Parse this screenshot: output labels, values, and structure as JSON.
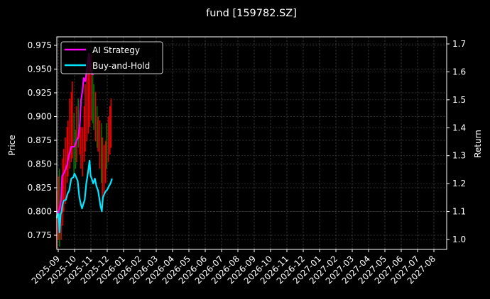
{
  "chart_data": {
    "type": "line",
    "title": "fund [159782.SZ]",
    "xlabel": "",
    "ylabel": "Price",
    "ylabel_right": "Return",
    "grid": true,
    "legend_position": "upper left",
    "x_ticks": [
      "2025-09",
      "2025-10",
      "2025-11",
      "2025-12",
      "2026-01",
      "2026-02",
      "2026-03",
      "2026-04",
      "2026-05",
      "2026-06",
      "2026-07",
      "2026-08",
      "2026-09",
      "2026-10",
      "2026-11",
      "2026-12",
      "2027-01",
      "2027-02",
      "2027-03",
      "2027-04",
      "2027-05",
      "2027-06",
      "2027-07",
      "2027-08"
    ],
    "y_ticks_left": [
      "0.775",
      "0.800",
      "0.825",
      "0.850",
      "0.875",
      "0.900",
      "0.925",
      "0.950",
      "0.975"
    ],
    "y_ticks_right": [
      "1.0",
      "1.1",
      "1.2",
      "1.3",
      "1.4",
      "1.5",
      "1.6",
      "1.7"
    ],
    "ylim_left": [
      0.761,
      0.983
    ],
    "ylim_right": [
      0.965,
      1.725
    ],
    "series": [
      {
        "name": "AI Strategy",
        "axis": "right",
        "color": "#ff00ff",
        "x_day": [
          0,
          3,
          5,
          8,
          10,
          13,
          17,
          20,
          22,
          27,
          30,
          33,
          37,
          40,
          43,
          45,
          48,
          50,
          53,
          57,
          60,
          63,
          66,
          69
        ],
        "values": [
          1.096,
          1.096,
          1.109,
          1.142,
          1.228,
          1.236,
          1.254,
          1.274,
          1.297,
          1.332,
          1.332,
          1.332,
          1.355,
          1.365,
          1.416,
          1.497,
          1.533,
          1.578,
          1.566,
          1.617,
          1.666,
          1.604,
          1.592,
          1.592
        ]
      },
      {
        "name": "Buy-and-Hold",
        "axis": "right",
        "color": "#00e5ff",
        "x_day": [
          0,
          1,
          3,
          5,
          7,
          9,
          11,
          13,
          17,
          20,
          23,
          27,
          31,
          33,
          36,
          39,
          42,
          45,
          47,
          49,
          52,
          55,
          58,
          61,
          63,
          65,
          68,
          71,
          74,
          77,
          79,
          81,
          84,
          86,
          89,
          92,
          94,
          97,
          100,
          103
        ],
        "values": [
          1.076,
          1.096,
          1.101,
          1.025,
          1.089,
          1.101,
          1.128,
          1.139,
          1.142,
          1.164,
          1.175,
          1.218,
          1.223,
          1.236,
          1.223,
          1.21,
          1.152,
          1.124,
          1.111,
          1.124,
          1.142,
          1.2,
          1.238,
          1.282,
          1.228,
          1.218,
          1.2,
          1.218,
          1.19,
          1.175,
          1.152,
          1.124,
          1.101,
          1.15,
          1.165,
          1.175,
          1.178,
          1.19,
          1.2,
          1.218
        ]
      }
    ],
    "price_bars": {
      "up_color": "#ff0000",
      "down_color": "#008000",
      "bars": [
        {
          "d": 0,
          "lo": 0.761,
          "hi": 0.822,
          "c": "up"
        },
        {
          "d": 3,
          "lo": 0.77,
          "hi": 0.837,
          "c": "up"
        },
        {
          "d": 5,
          "lo": 0.763,
          "hi": 0.845,
          "c": "down"
        },
        {
          "d": 8,
          "lo": 0.77,
          "hi": 0.815,
          "c": "up"
        },
        {
          "d": 11,
          "lo": 0.785,
          "hi": 0.856,
          "c": "up"
        },
        {
          "d": 13,
          "lo": 0.8,
          "hi": 0.866,
          "c": "up"
        },
        {
          "d": 16,
          "lo": 0.808,
          "hi": 0.878,
          "c": "up"
        },
        {
          "d": 19,
          "lo": 0.83,
          "hi": 0.889,
          "c": "up"
        },
        {
          "d": 21,
          "lo": 0.837,
          "hi": 0.896,
          "c": "up"
        },
        {
          "d": 24,
          "lo": 0.845,
          "hi": 0.919,
          "c": "up"
        },
        {
          "d": 27,
          "lo": 0.852,
          "hi": 0.926,
          "c": "up"
        },
        {
          "d": 29,
          "lo": 0.856,
          "hi": 0.937,
          "c": "up"
        },
        {
          "d": 32,
          "lo": 0.837,
          "hi": 0.904,
          "c": "down"
        },
        {
          "d": 35,
          "lo": 0.845,
          "hi": 0.886,
          "c": "down"
        },
        {
          "d": 37,
          "lo": 0.852,
          "hi": 0.911,
          "c": "up"
        },
        {
          "d": 40,
          "lo": 0.867,
          "hi": 0.919,
          "c": "down"
        },
        {
          "d": 43,
          "lo": 0.86,
          "hi": 0.896,
          "c": "up"
        },
        {
          "d": 45,
          "lo": 0.845,
          "hi": 0.889,
          "c": "up"
        },
        {
          "d": 48,
          "lo": 0.837,
          "hi": 0.889,
          "c": "up"
        },
        {
          "d": 51,
          "lo": 0.852,
          "hi": 0.911,
          "c": "up"
        },
        {
          "d": 53,
          "lo": 0.863,
          "hi": 0.934,
          "c": "up"
        },
        {
          "d": 56,
          "lo": 0.874,
          "hi": 0.949,
          "c": "up"
        },
        {
          "d": 59,
          "lo": 0.882,
          "hi": 0.953,
          "c": "up"
        },
        {
          "d": 61,
          "lo": 0.889,
          "hi": 0.96,
          "c": "up"
        },
        {
          "d": 64,
          "lo": 0.896,
          "hi": 0.966,
          "c": "up"
        },
        {
          "d": 67,
          "lo": 0.893,
          "hi": 0.949,
          "c": "down"
        },
        {
          "d": 69,
          "lo": 0.886,
          "hi": 0.934,
          "c": "down"
        },
        {
          "d": 72,
          "lo": 0.874,
          "hi": 0.926,
          "c": "up"
        },
        {
          "d": 75,
          "lo": 0.867,
          "hi": 0.911,
          "c": "down"
        },
        {
          "d": 77,
          "lo": 0.863,
          "hi": 0.9,
          "c": "up"
        },
        {
          "d": 80,
          "lo": 0.845,
          "hi": 0.896,
          "c": "up"
        },
        {
          "d": 83,
          "lo": 0.83,
          "hi": 0.893,
          "c": "down"
        },
        {
          "d": 85,
          "lo": 0.815,
          "hi": 0.878,
          "c": "up"
        },
        {
          "d": 88,
          "lo": 0.819,
          "hi": 0.87,
          "c": "up"
        },
        {
          "d": 91,
          "lo": 0.83,
          "hi": 0.874,
          "c": "up"
        },
        {
          "d": 93,
          "lo": 0.845,
          "hi": 0.893,
          "c": "down"
        },
        {
          "d": 96,
          "lo": 0.852,
          "hi": 0.9,
          "c": "up"
        },
        {
          "d": 99,
          "lo": 0.86,
          "hi": 0.911,
          "c": "up"
        },
        {
          "d": 101,
          "lo": 0.867,
          "hi": 0.919,
          "c": "up"
        }
      ]
    }
  },
  "legend": {
    "items": [
      {
        "label": "AI Strategy",
        "color": "#ff00ff"
      },
      {
        "label": "Buy-and-Hold",
        "color": "#00e5ff"
      }
    ]
  }
}
